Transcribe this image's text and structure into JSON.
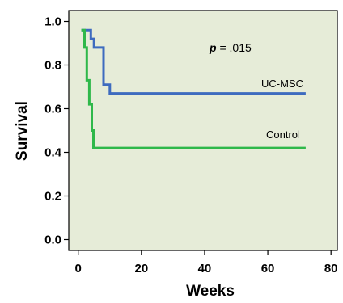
{
  "chart_data": {
    "type": "line",
    "step": true,
    "xlabel": "Weeks",
    "ylabel": "Survival",
    "xlim": [
      -3,
      82
    ],
    "ylim": [
      -0.05,
      1.05
    ],
    "x_ticks": [
      0,
      20,
      40,
      60,
      80
    ],
    "y_ticks": [
      0.0,
      0.2,
      0.4,
      0.6,
      0.8,
      1.0
    ],
    "x_tick_labels": [
      "0",
      "20",
      "40",
      "60",
      "80"
    ],
    "y_tick_labels": [
      "0.0",
      "0.2",
      "0.4",
      "0.6",
      "0.8",
      "1.0"
    ],
    "background": "#e6ecd8",
    "grid": false,
    "annotation": {
      "prefix": "p",
      "suffix": " = .015"
    },
    "series": [
      {
        "name": "UC-MSC",
        "color": "#3e6bbf",
        "points": [
          [
            1,
            0.96
          ],
          [
            4,
            0.96
          ],
          [
            4,
            0.92
          ],
          [
            5,
            0.92
          ],
          [
            5,
            0.88
          ],
          [
            8,
            0.88
          ],
          [
            8,
            0.71
          ],
          [
            10,
            0.71
          ],
          [
            10,
            0.67
          ],
          [
            72,
            0.67
          ]
        ]
      },
      {
        "name": "Control",
        "color": "#2fb84a",
        "points": [
          [
            1,
            0.96
          ],
          [
            2,
            0.96
          ],
          [
            2,
            0.88
          ],
          [
            2.7,
            0.88
          ],
          [
            2.7,
            0.73
          ],
          [
            3.5,
            0.73
          ],
          [
            3.5,
            0.62
          ],
          [
            4.3,
            0.62
          ],
          [
            4.3,
            0.5
          ],
          [
            4.8,
            0.5
          ],
          [
            4.8,
            0.42
          ],
          [
            72,
            0.42
          ]
        ]
      }
    ]
  }
}
